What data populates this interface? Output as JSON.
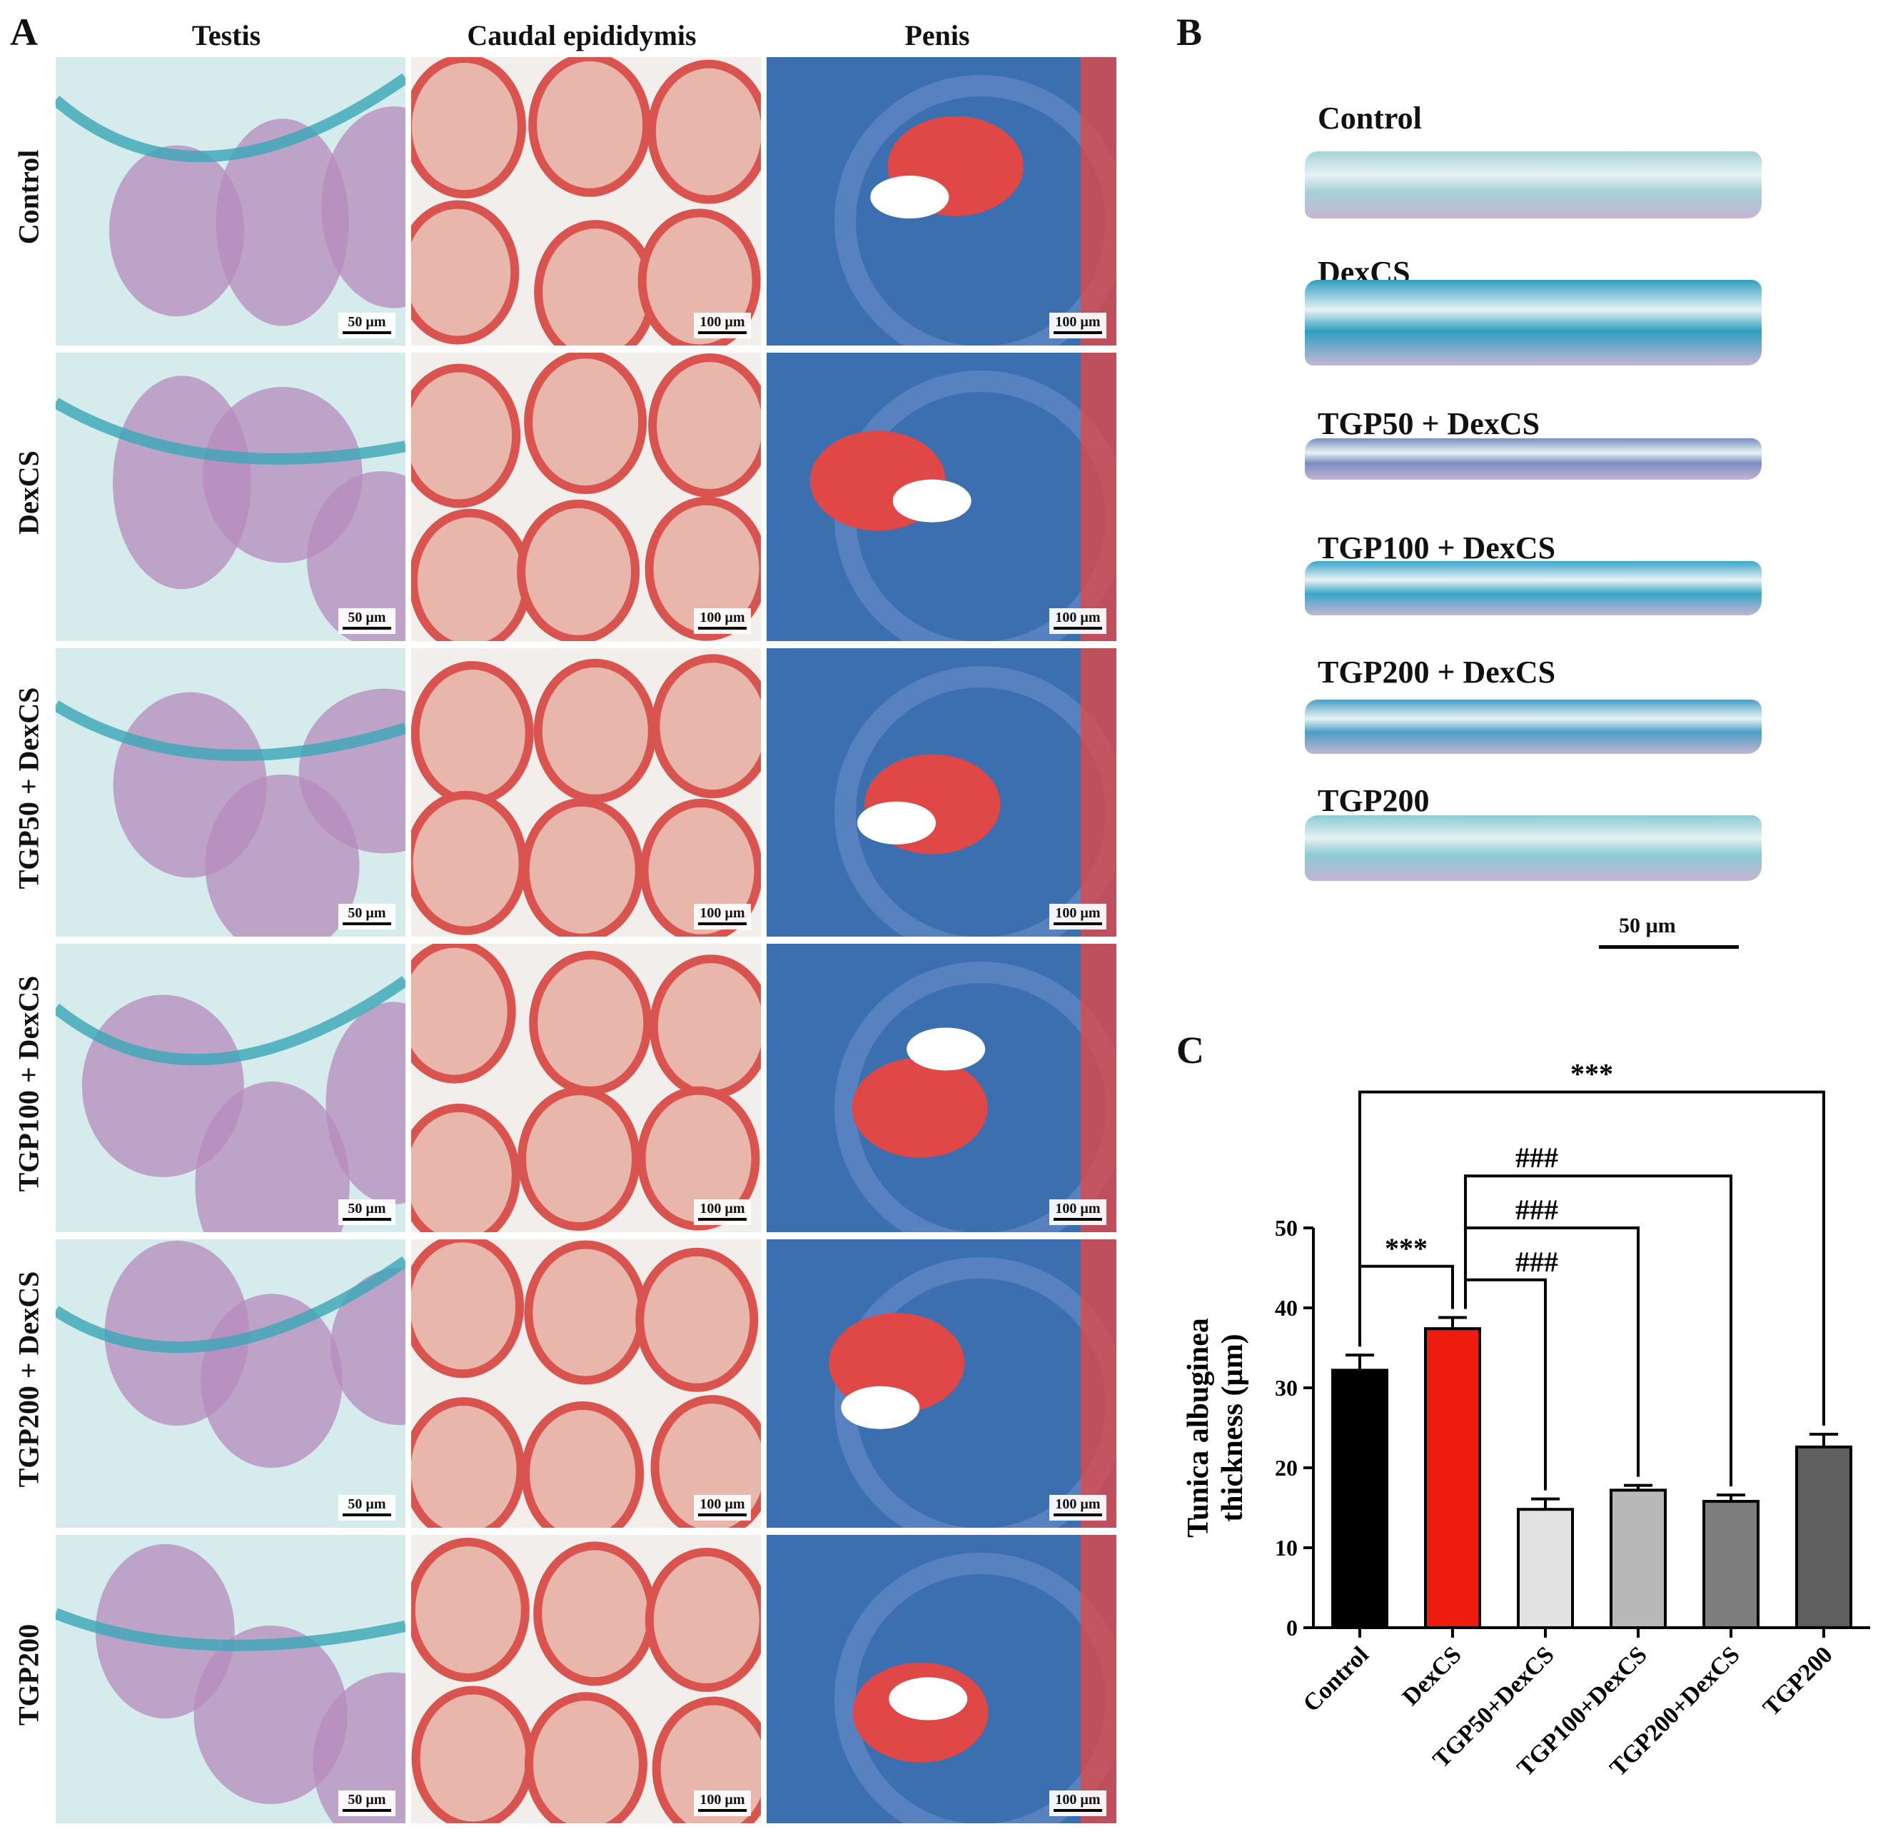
{
  "panels": {
    "a": "A",
    "b": "B",
    "c": "C"
  },
  "panel_a": {
    "columns": [
      "Testis",
      "Caudal epididymis",
      "Penis"
    ],
    "rows": [
      "Control",
      "DexCS",
      "TGP50 + DexCS",
      "TGP100 + DexCS",
      "TGP200 + DexCS",
      "TGP200"
    ],
    "scalebars": [
      "50 µm",
      "100 µm",
      "100 µm"
    ],
    "colors": {
      "testis_bg": "#d6ecec",
      "tubule": "#b58bbd",
      "capsule_blue": "#3aa6b8",
      "epididymis_bg": "#f2eeec",
      "duct_wall": "#d9534f",
      "duct_lumen": "#e8b6aa",
      "penis_blue": "#3b6fb0",
      "penis_red": "#e04848"
    }
  },
  "panel_b": {
    "rows": [
      "Control",
      "DexCS",
      "TGP50 + DexCS",
      "TGP100 + DexCS",
      "TGP200 + DexCS",
      "TGP200"
    ],
    "scalebar": "50 µm",
    "strip_colors": [
      "#a7d2d6",
      "#2f9fc0",
      "#7a8ec0",
      "#3aa6c8",
      "#4a9fc4",
      "#8ccad4"
    ]
  },
  "chart_data": {
    "type": "bar",
    "title": "",
    "xlabel": "",
    "ylabel": "Tunica albuginea thickness (µm)",
    "ylabel_lines": [
      "Tunica albuginea",
      "thickness (µm)"
    ],
    "ylim": [
      0,
      50
    ],
    "yticks": [
      0,
      10,
      20,
      30,
      40,
      50
    ],
    "categories": [
      "Control",
      "DexCS",
      "TGP50+DexCS",
      "TGP100+DexCS",
      "TGP200+DexCS",
      "TGP200"
    ],
    "values": [
      32.2,
      37.4,
      14.8,
      17.2,
      15.8,
      22.6
    ],
    "errors": [
      1.9,
      1.4,
      1.3,
      0.6,
      0.8,
      1.6
    ],
    "colors": [
      "#000000",
      "#ee1c0e",
      "#e2e2e2",
      "#b8b8b8",
      "#7d7d7d",
      "#5f5f5f"
    ],
    "grid": false,
    "annotations": [
      {
        "from": "Control",
        "to": "DexCS",
        "label": "***"
      },
      {
        "from": "DexCS",
        "to": "TGP50+DexCS",
        "label": "###"
      },
      {
        "from": "DexCS",
        "to": "TGP100+DexCS",
        "label": "###"
      },
      {
        "from": "DexCS",
        "to": "TGP200+DexCS",
        "label": "###"
      },
      {
        "from": "Control",
        "to": "TGP200",
        "label": "***"
      }
    ]
  }
}
